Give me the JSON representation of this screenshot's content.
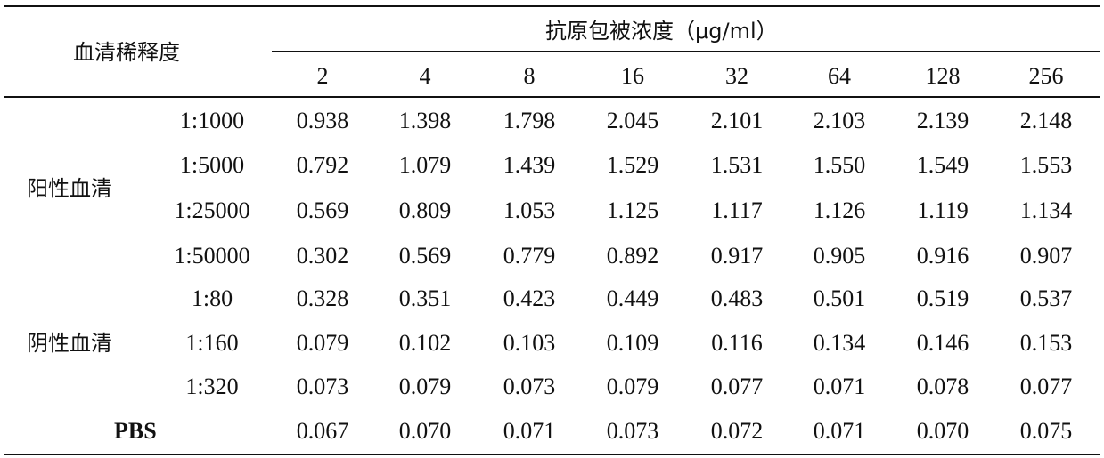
{
  "header": {
    "row_header": "血清稀释度",
    "col_group": "抗原包被浓度（μg/ml）",
    "concentrations": [
      "2",
      "4",
      "8",
      "16",
      "32",
      "64",
      "128",
      "256"
    ]
  },
  "groups": [
    {
      "label": "阳性血清",
      "rows": [
        {
          "dilution": "1:1000",
          "values": [
            "0.938",
            "1.398",
            "1.798",
            "2.045",
            "2.101",
            "2.103",
            "2.139",
            "2.148"
          ]
        },
        {
          "dilution": "1:5000",
          "values": [
            "0.792",
            "1.079",
            "1.439",
            "1.529",
            "1.531",
            "1.550",
            "1.549",
            "1.553"
          ]
        },
        {
          "dilution": "1:25000",
          "values": [
            "0.569",
            "0.809",
            "1.053",
            "1.125",
            "1.117",
            "1.126",
            "1.119",
            "1.134"
          ]
        },
        {
          "dilution": "1:50000",
          "values": [
            "0.302",
            "0.569",
            "0.779",
            "0.892",
            "0.917",
            "0.905",
            "0.916",
            "0.907"
          ]
        }
      ]
    },
    {
      "label": "阴性血清",
      "rows": [
        {
          "dilution": "1:80",
          "values": [
            "0.328",
            "0.351",
            "0.423",
            "0.449",
            "0.483",
            "0.501",
            "0.519",
            "0.537"
          ]
        },
        {
          "dilution": "1:160",
          "values": [
            "0.079",
            "0.102",
            "0.103",
            "0.109",
            "0.116",
            "0.134",
            "0.146",
            "0.153"
          ]
        },
        {
          "dilution": "1:320",
          "values": [
            "0.073",
            "0.079",
            "0.073",
            "0.079",
            "0.077",
            "0.071",
            "0.078",
            "0.077"
          ]
        }
      ]
    }
  ],
  "pbs_row": {
    "label": "PBS",
    "values": [
      "0.067",
      "0.070",
      "0.071",
      "0.073",
      "0.072",
      "0.071",
      "0.070",
      "0.075"
    ]
  }
}
